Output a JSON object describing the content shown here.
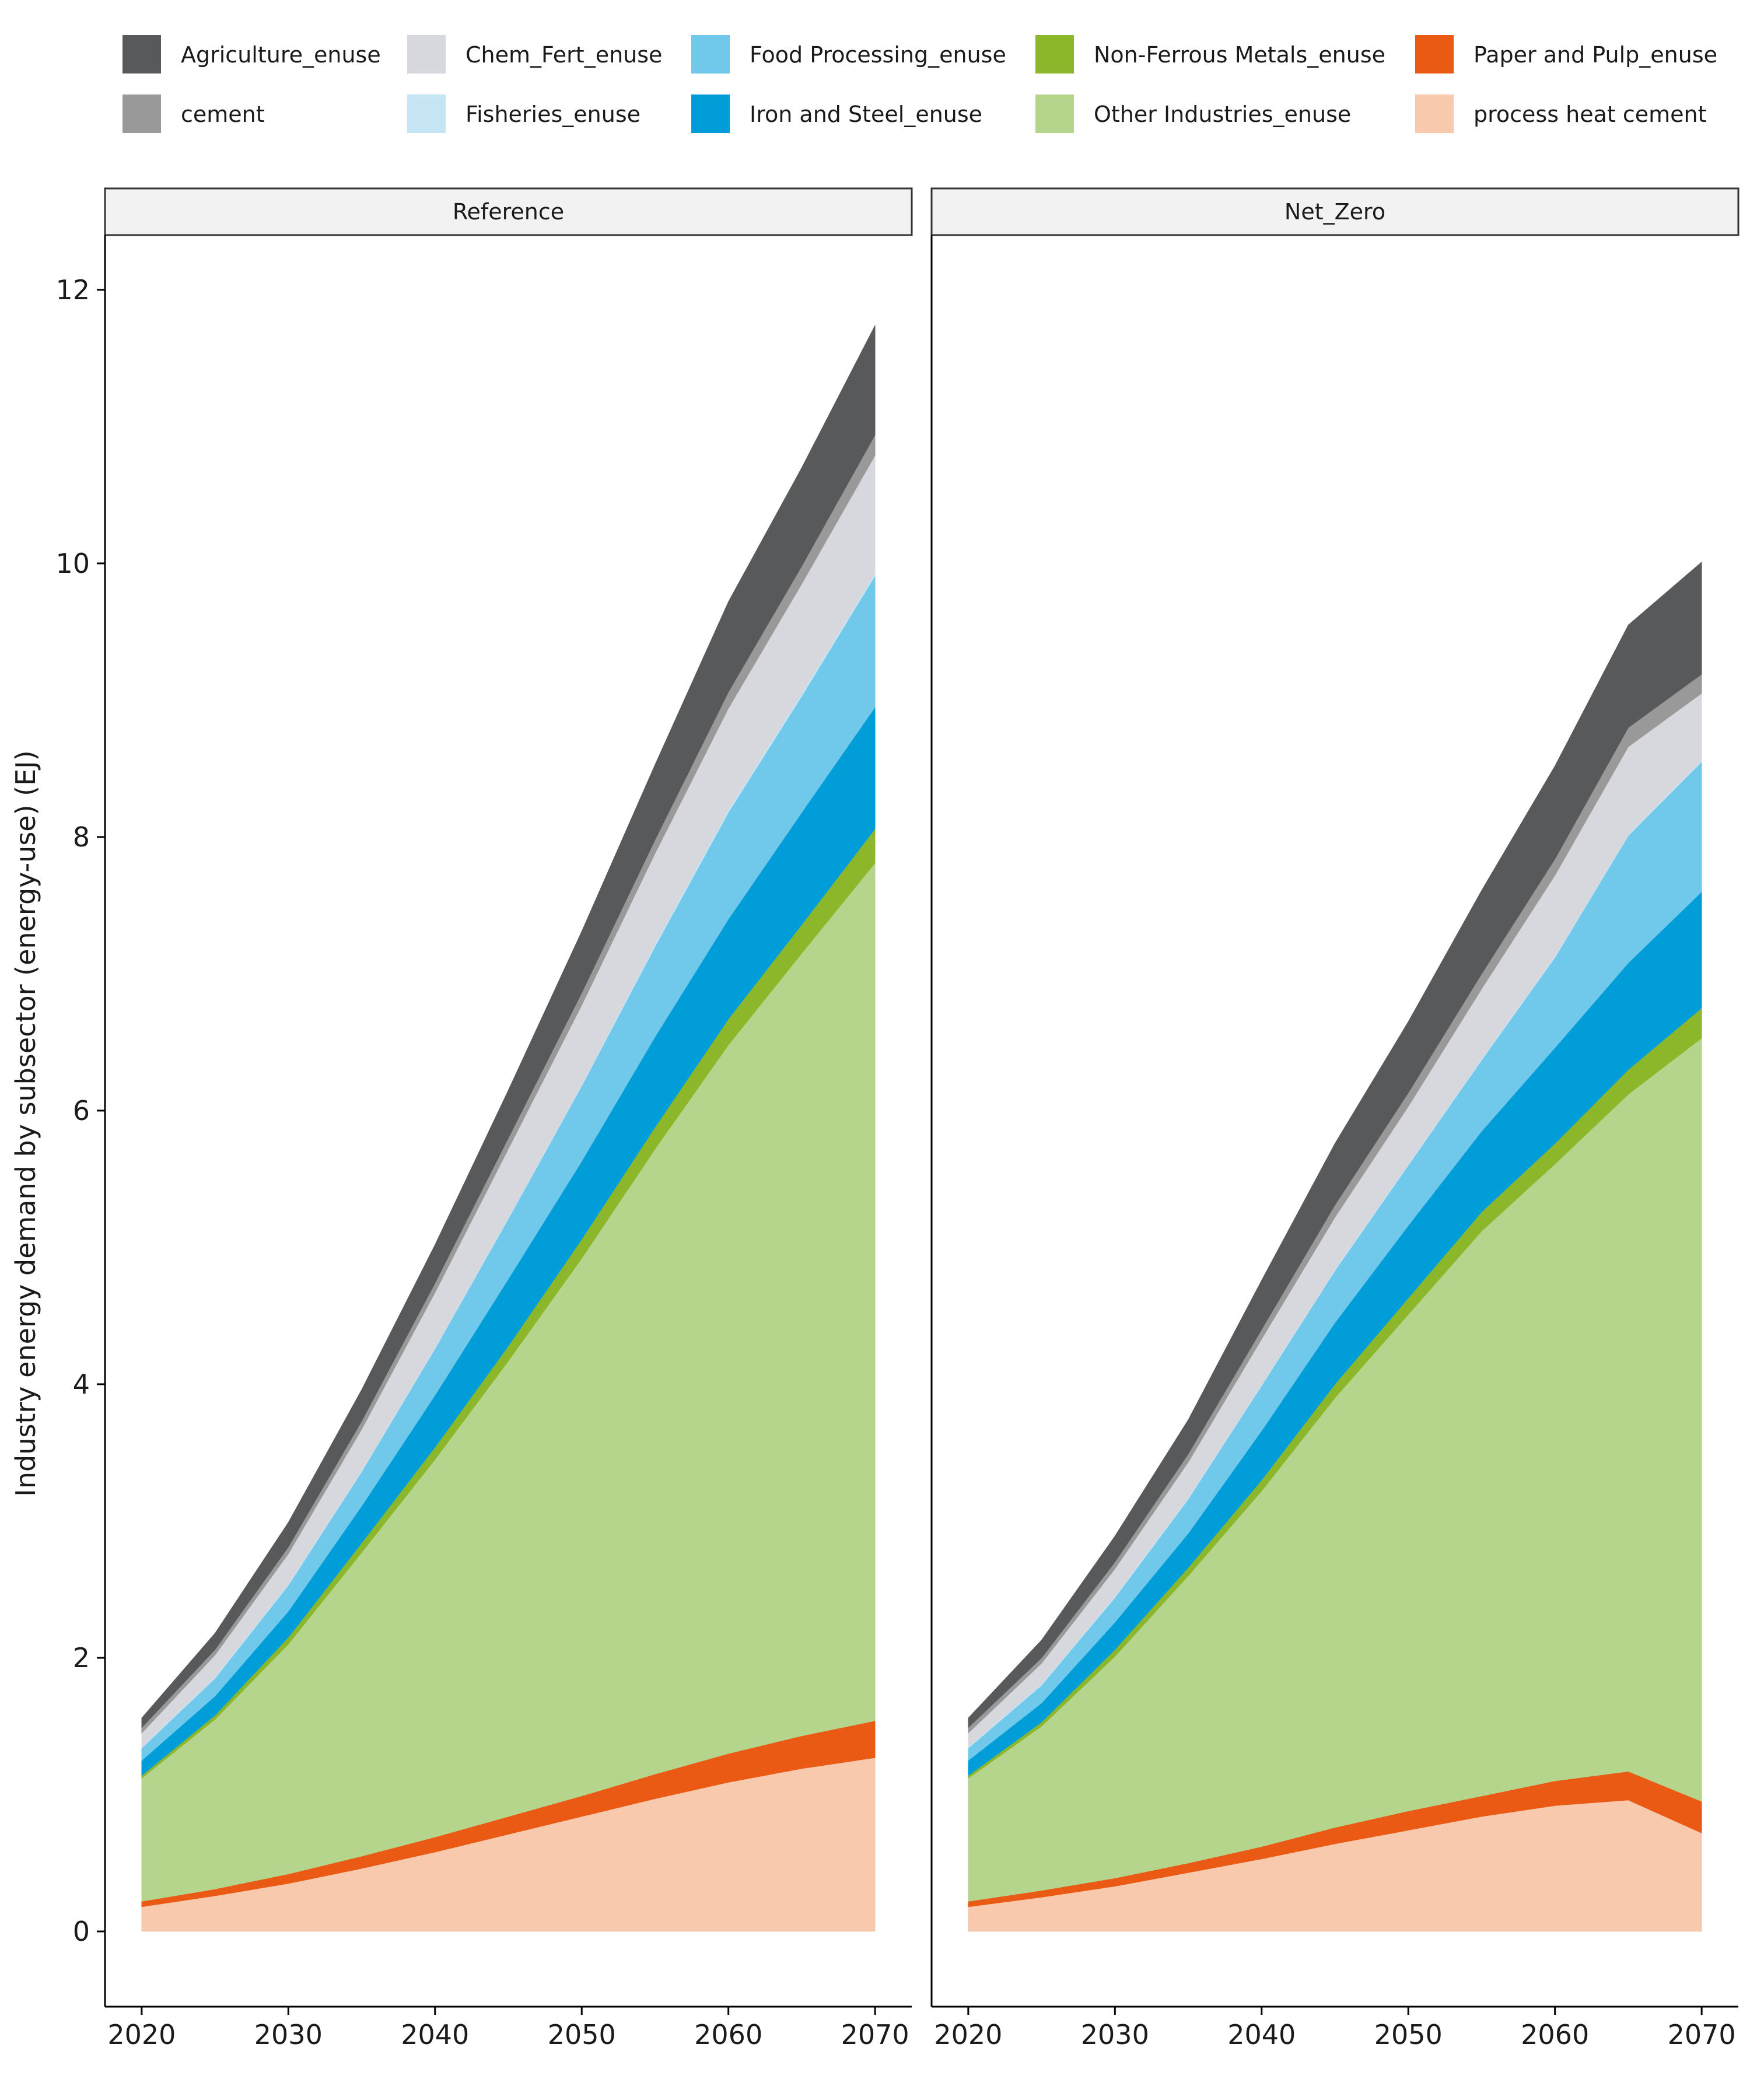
{
  "chart_data": {
    "type": "area",
    "stacked": true,
    "ylabel": "Industry energy demand by subsector (energy-use) (EJ)",
    "xlabel": "",
    "x": [
      2020,
      2025,
      2030,
      2035,
      2040,
      2045,
      2050,
      2055,
      2060,
      2065,
      2070
    ],
    "x_ticks": [
      2020,
      2030,
      2040,
      2050,
      2060,
      2070
    ],
    "ylim": [
      0,
      12
    ],
    "y_ticks": [
      0,
      2,
      4,
      6,
      8,
      10,
      12
    ],
    "grid": false,
    "legend_position": "top",
    "legend": [
      {
        "name": "Agriculture_enuse",
        "color": "#58595b"
      },
      {
        "name": "cement",
        "color": "#999999"
      },
      {
        "name": "Chem_Fert_enuse",
        "color": "#d7d8dd"
      },
      {
        "name": "Fisheries_enuse",
        "color": "#c5e5f5"
      },
      {
        "name": "Food Processing_enuse",
        "color": "#70c9eb"
      },
      {
        "name": "Iron and Steel_enuse",
        "color": "#009dd9"
      },
      {
        "name": "Non-Ferrous Metals_enuse",
        "color": "#8db72a"
      },
      {
        "name": "Other Industries_enuse",
        "color": "#b5d48c"
      },
      {
        "name": "Paper and Pulp_enuse",
        "color": "#ea5a14"
      },
      {
        "name": "process heat cement",
        "color": "#f8c9ad"
      }
    ],
    "stack_order_bottom_to_top": [
      "process heat cement",
      "Paper and Pulp_enuse",
      "Other Industries_enuse",
      "Non-Ferrous Metals_enuse",
      "Iron and Steel_enuse",
      "Food Processing_enuse",
      "Fisheries_enuse",
      "Chem_Fert_enuse",
      "cement",
      "Agriculture_enuse"
    ],
    "panels": [
      {
        "title": "Reference",
        "series": [
          {
            "name": "process heat cement",
            "values": [
              0.18,
              0.26,
              0.35,
              0.46,
              0.58,
              0.71,
              0.84,
              0.97,
              1.09,
              1.19,
              1.27
            ]
          },
          {
            "name": "Paper and Pulp_enuse",
            "values": [
              0.04,
              0.05,
              0.07,
              0.09,
              0.11,
              0.13,
              0.15,
              0.18,
              0.21,
              0.24,
              0.27
            ]
          },
          {
            "name": "Other Industries_enuse",
            "values": [
              0.9,
              1.24,
              1.68,
              2.22,
              2.76,
              3.33,
              3.93,
              4.57,
              5.18,
              5.72,
              6.27
            ]
          },
          {
            "name": "Non-Ferrous Metals_enuse",
            "values": [
              0.02,
              0.03,
              0.05,
              0.07,
              0.09,
              0.11,
              0.14,
              0.16,
              0.19,
              0.21,
              0.25
            ]
          },
          {
            "name": "Iron and Steel_enuse",
            "values": [
              0.11,
              0.14,
              0.19,
              0.27,
              0.38,
              0.49,
              0.57,
              0.66,
              0.73,
              0.82,
              0.89
            ]
          },
          {
            "name": "Food Processing_enuse",
            "values": [
              0.09,
              0.13,
              0.19,
              0.25,
              0.34,
              0.44,
              0.55,
              0.66,
              0.78,
              0.85,
              0.96
            ]
          },
          {
            "name": "Fisheries_enuse",
            "values": [
              0.01,
              0.01,
              0.01,
              0.01,
              0.01,
              0.01,
              0.01,
              0.02,
              0.02,
              0.02,
              0.02
            ]
          },
          {
            "name": "Chem_Fert_enuse",
            "values": [
              0.1,
              0.16,
              0.22,
              0.3,
              0.4,
              0.5,
              0.58,
              0.66,
              0.74,
              0.8,
              0.86
            ]
          },
          {
            "name": "cement",
            "values": [
              0.04,
              0.04,
              0.05,
              0.06,
              0.07,
              0.08,
              0.09,
              0.1,
              0.12,
              0.13,
              0.15
            ]
          },
          {
            "name": "Agriculture_enuse",
            "values": [
              0.07,
              0.12,
              0.18,
              0.23,
              0.28,
              0.35,
              0.45,
              0.55,
              0.66,
              0.72,
              0.8
            ]
          }
        ]
      },
      {
        "title": "Net_Zero",
        "series": [
          {
            "name": "process heat cement",
            "values": [
              0.18,
              0.25,
              0.33,
              0.43,
              0.53,
              0.64,
              0.74,
              0.84,
              0.92,
              0.96,
              0.72
            ]
          },
          {
            "name": "Paper and Pulp_enuse",
            "values": [
              0.04,
              0.05,
              0.06,
              0.07,
              0.09,
              0.12,
              0.14,
              0.15,
              0.18,
              0.21,
              0.23
            ]
          },
          {
            "name": "Other Industries_enuse",
            "values": [
              0.9,
              1.2,
              1.62,
              2.1,
              2.6,
              3.14,
              3.63,
              4.13,
              4.51,
              4.95,
              5.58
            ]
          },
          {
            "name": "Non-Ferrous Metals_enuse",
            "values": [
              0.02,
              0.03,
              0.05,
              0.06,
              0.08,
              0.1,
              0.12,
              0.14,
              0.15,
              0.18,
              0.22
            ]
          },
          {
            "name": "Iron and Steel_enuse",
            "values": [
              0.11,
              0.14,
              0.2,
              0.25,
              0.36,
              0.45,
              0.53,
              0.59,
              0.7,
              0.78,
              0.85
            ]
          },
          {
            "name": "Food Processing_enuse",
            "values": [
              0.09,
              0.13,
              0.18,
              0.25,
              0.33,
              0.38,
              0.44,
              0.52,
              0.66,
              0.93,
              0.95
            ]
          },
          {
            "name": "Fisheries_enuse",
            "values": [
              0.01,
              0.01,
              0.01,
              0.01,
              0.01,
              0.01,
              0.01,
              0.01,
              0.01,
              0.01,
              0.01
            ]
          },
          {
            "name": "Chem_Fert_enuse",
            "values": [
              0.1,
              0.15,
              0.2,
              0.26,
              0.33,
              0.38,
              0.42,
              0.51,
              0.59,
              0.64,
              0.49
            ]
          },
          {
            "name": "cement",
            "values": [
              0.04,
              0.04,
              0.05,
              0.06,
              0.07,
              0.09,
              0.1,
              0.11,
              0.12,
              0.14,
              0.14
            ]
          },
          {
            "name": "Agriculture_enuse",
            "values": [
              0.07,
              0.13,
              0.19,
              0.25,
              0.36,
              0.45,
              0.52,
              0.61,
              0.68,
              0.75,
              0.82
            ]
          }
        ]
      }
    ]
  }
}
